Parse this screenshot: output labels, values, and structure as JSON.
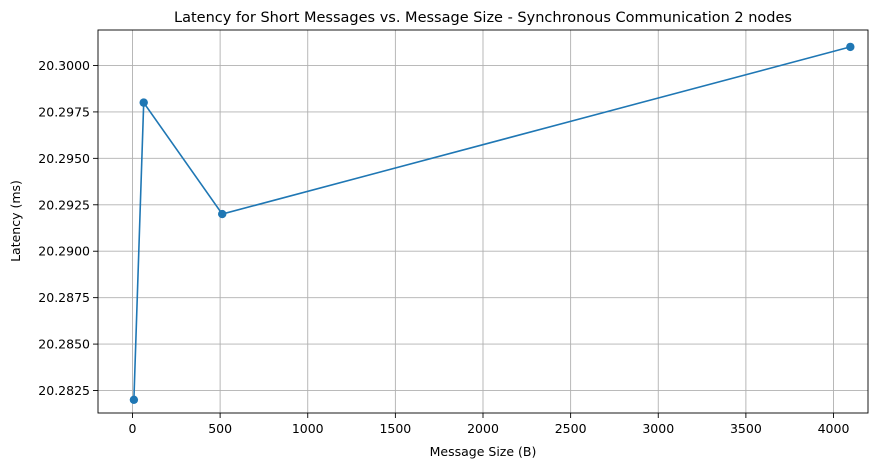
{
  "chart_data": {
    "type": "line",
    "title": "Latency for Short Messages vs. Message Size - Synchronous Communication 2 nodes",
    "xlabel": "Message Size (B)",
    "ylabel": "Latency (ms)",
    "x_ticks": [
      "0",
      "500",
      "1000",
      "1500",
      "2000",
      "2500",
      "3000",
      "3500",
      "4000"
    ],
    "y_ticks": [
      "20.2825",
      "20.2850",
      "20.2875",
      "20.2900",
      "20.2925",
      "20.2950",
      "20.2975",
      "20.3000"
    ],
    "x_tick_values": [
      0,
      500,
      1000,
      1500,
      2000,
      2500,
      3000,
      3500,
      4000
    ],
    "y_tick_values": [
      20.2825,
      20.285,
      20.2875,
      20.29,
      20.2925,
      20.295,
      20.2975,
      20.3
    ],
    "xlim": [
      -196.8,
      4196.8
    ],
    "ylim": [
      20.28129,
      20.30191
    ],
    "grid": true,
    "series": [
      {
        "color": "#1f77b4",
        "marker": "circle",
        "points": [
          {
            "x": 8,
            "y": 20.282
          },
          {
            "x": 64,
            "y": 20.298
          },
          {
            "x": 512,
            "y": 20.292
          },
          {
            "x": 4096,
            "y": 20.301
          }
        ]
      }
    ]
  }
}
